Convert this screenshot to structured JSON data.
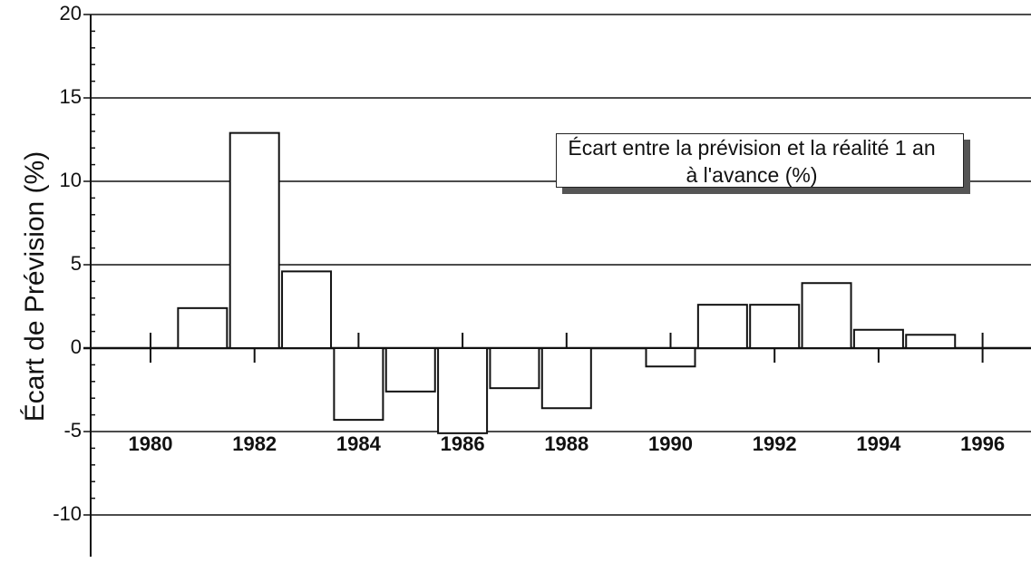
{
  "chart_data": {
    "type": "bar",
    "y_label": "Écart de Prévision (%)",
    "categories": [
      "1980",
      null,
      "1982",
      null,
      "1984",
      null,
      "1986",
      null,
      "1988",
      null,
      "1990",
      null,
      "1992",
      null,
      "1994",
      null,
      "1996"
    ],
    "series": [
      {
        "name": "Écart entre la prévision et la réalité 1 an à l'avance (%)",
        "color": "#ffffff",
        "values": [
          null,
          2.4,
          12.9,
          4.6,
          -4.3,
          -2.6,
          -5.1,
          -2.4,
          -3.6,
          null,
          -1.1,
          2.6,
          2.6,
          3.9,
          1.1,
          0.8,
          null
        ]
      }
    ],
    "ylim": [
      -12.5,
      20
    ],
    "yticks": [
      -10,
      -5,
      0,
      5,
      10,
      15,
      20
    ],
    "grid": true
  }
}
